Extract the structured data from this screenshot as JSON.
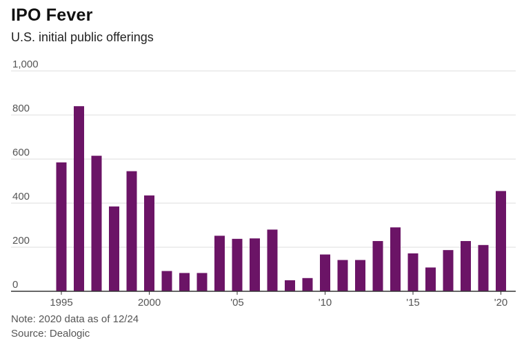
{
  "header": {
    "title": "IPO Fever",
    "subtitle": "U.S. initial public offerings"
  },
  "footer": {
    "note": "Note: 2020 data as of 12/24",
    "source": "Source: Dealogic"
  },
  "colors": {
    "bar": "#6b1466",
    "grid": "#dddddd",
    "axis": "#333333",
    "tick_text": "#555555"
  },
  "chart_data": {
    "type": "bar",
    "title": "IPO Fever",
    "subtitle": "U.S. initial public offerings",
    "xlabel": "",
    "ylabel": "",
    "categories": [
      "1995",
      "1996",
      "1997",
      "1998",
      "1999",
      "2000",
      "2001",
      "2002",
      "2003",
      "2004",
      "2005",
      "2006",
      "2007",
      "2008",
      "2009",
      "2010",
      "2011",
      "2012",
      "2013",
      "2014",
      "2015",
      "2016",
      "2017",
      "2018",
      "2019",
      "2020"
    ],
    "values": [
      585,
      840,
      615,
      385,
      545,
      435,
      92,
      83,
      83,
      252,
      238,
      240,
      280,
      50,
      60,
      167,
      142,
      142,
      228,
      290,
      172,
      108,
      187,
      228,
      210,
      455
    ],
    "ylim": [
      0,
      1000
    ],
    "yticks": [
      0,
      200,
      400,
      600,
      800,
      1000
    ],
    "ytick_labels": [
      "0",
      "200",
      "400",
      "600",
      "800",
      "1,000"
    ],
    "xtick_labels": [
      {
        "year": "1995",
        "label": "1995"
      },
      {
        "year": "2000",
        "label": "2000"
      },
      {
        "year": "2005",
        "label": "'05"
      },
      {
        "year": "2010",
        "label": "'10"
      },
      {
        "year": "2015",
        "label": "'15"
      },
      {
        "year": "2020",
        "label": "'20"
      }
    ],
    "grid": true,
    "legend": "none"
  }
}
